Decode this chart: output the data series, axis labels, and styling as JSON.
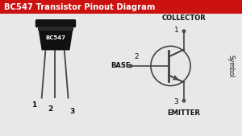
{
  "title": "BC547 Transistor Pinout Diagram",
  "title_bg": "#cc1111",
  "title_color": "#ffffff",
  "bg_color": "#e8e8e8",
  "transistor_body_color": "#111111",
  "transistor_rim_color": "#222222",
  "transistor_text": "BC547",
  "transistor_text_color": "#ffffff",
  "pin_labels": [
    "1",
    "2",
    "3"
  ],
  "pin_names": [
    "COLLECTOR",
    "BASE",
    "EMITTER"
  ],
  "symbol_label": "Symbol",
  "circle_color": "#444444",
  "line_color": "#444444",
  "label_color": "#111111",
  "xlim": [
    0,
    10
  ],
  "ylim": [
    0,
    5.63
  ]
}
